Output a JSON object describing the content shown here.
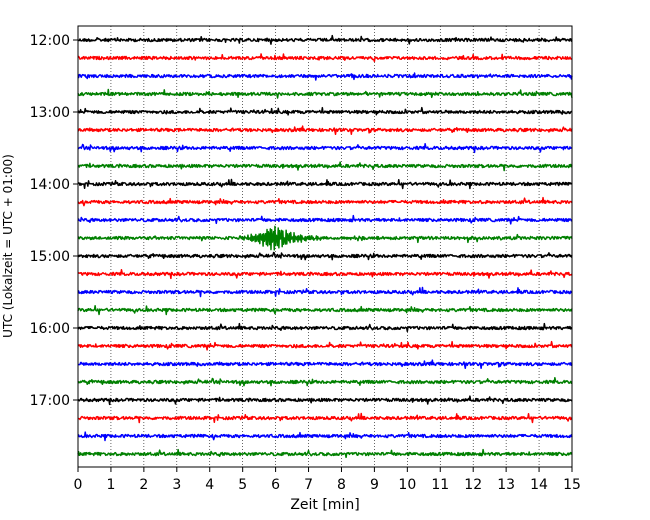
{
  "chart_data": {
    "type": "line",
    "title": "",
    "xlabel": "Zeit  [min]",
    "ylabel": "UTC (Lokalzeit = UTC + 01:00)",
    "xlim": [
      0,
      15
    ],
    "x_ticks": [
      "0",
      "1",
      "2",
      "3",
      "4",
      "5",
      "6",
      "7",
      "8",
      "9",
      "10",
      "11",
      "12",
      "13",
      "14",
      "15"
    ],
    "y_ticks": [
      "12:00",
      "13:00",
      "14:00",
      "15:00",
      "16:00",
      "17:00"
    ],
    "grid": "vertical dotted",
    "trace_interval_minutes": 15,
    "trace_start": "12:00",
    "trace_colors": [
      "#000000",
      "#ff0000",
      "#0000ff",
      "#008000"
    ],
    "traces": [
      {
        "start": "12:00",
        "color": "#000000"
      },
      {
        "start": "12:15",
        "color": "#ff0000"
      },
      {
        "start": "12:30",
        "color": "#0000ff"
      },
      {
        "start": "12:45",
        "color": "#008000"
      },
      {
        "start": "13:00",
        "color": "#000000"
      },
      {
        "start": "13:15",
        "color": "#ff0000"
      },
      {
        "start": "13:30",
        "color": "#0000ff"
      },
      {
        "start": "13:45",
        "color": "#008000"
      },
      {
        "start": "14:00",
        "color": "#000000"
      },
      {
        "start": "14:15",
        "color": "#ff0000"
      },
      {
        "start": "14:30",
        "color": "#0000ff"
      },
      {
        "start": "14:45",
        "color": "#008000",
        "event_minute": 6.0
      },
      {
        "start": "15:00",
        "color": "#000000"
      },
      {
        "start": "15:15",
        "color": "#ff0000"
      },
      {
        "start": "15:30",
        "color": "#0000ff"
      },
      {
        "start": "15:45",
        "color": "#008000"
      },
      {
        "start": "16:00",
        "color": "#000000"
      },
      {
        "start": "16:15",
        "color": "#ff0000"
      },
      {
        "start": "16:30",
        "color": "#0000ff"
      },
      {
        "start": "16:45",
        "color": "#008000"
      },
      {
        "start": "17:00",
        "color": "#000000"
      },
      {
        "start": "17:15",
        "color": "#ff0000"
      },
      {
        "start": "17:30",
        "color": "#0000ff"
      },
      {
        "start": "17:45",
        "color": "#008000"
      }
    ]
  }
}
